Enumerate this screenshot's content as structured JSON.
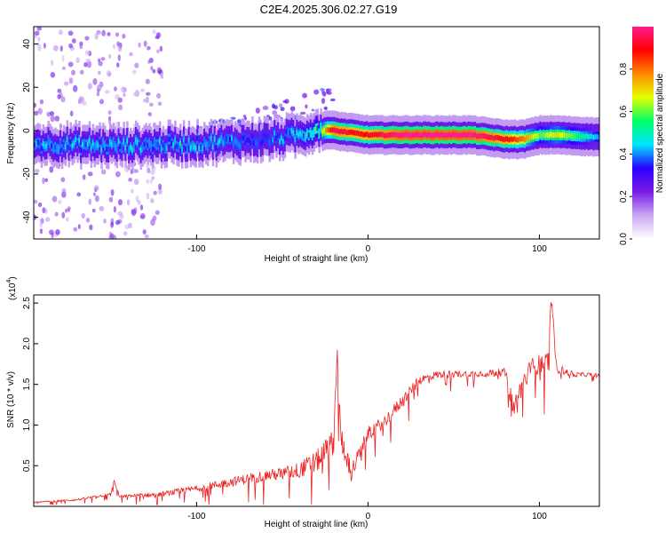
{
  "figure_title": "C2E4.2025.306.02.27.G19",
  "chart_data": [
    {
      "type": "heatmap",
      "title": "C2E4.2025.306.02.27.G19",
      "xlabel": "Height of straight line (km)",
      "ylabel": "Frequency (Hz)",
      "xlim": [
        -195,
        135
      ],
      "ylim": [
        -50,
        48
      ],
      "xticks": [
        -100,
        0,
        100
      ],
      "xtick_labels": [
        "-100",
        "0",
        "100"
      ],
      "yticks": [
        40,
        20,
        0,
        -20,
        -40
      ],
      "ytick_labels": [
        "40",
        "20",
        "0",
        "-20",
        "-40"
      ],
      "colorbar": {
        "label": "Normalized spectral amplitude",
        "range": [
          0,
          1
        ],
        "ticks": [
          0.0,
          0.2,
          0.4,
          0.6,
          0.8
        ],
        "tick_labels": [
          "0.0",
          "0.2",
          "0.4",
          "0.6",
          "0.8"
        ],
        "colors": [
          "#ffffff",
          "#c9a6f2",
          "#7a1ce6",
          "#2a00ff",
          "#00e5ff",
          "#00ff66",
          "#e6ff00",
          "#ff8800",
          "#ff0000",
          "#ff1a8c"
        ]
      },
      "ridge": {
        "description_points_x": [
          -190,
          -150,
          -100,
          -60,
          -40,
          -30,
          -20,
          -10,
          0,
          20,
          60,
          80,
          90,
          100,
          110,
          135
        ],
        "description_points_freq": [
          -6,
          -7,
          -6,
          -4,
          -2,
          1,
          0,
          -1,
          -2,
          -2,
          -2,
          -4,
          -4,
          -2,
          -2,
          -3
        ],
        "peak_amplitude": [
          0.5,
          0.5,
          0.5,
          0.45,
          0.5,
          0.6,
          0.95,
          0.9,
          0.9,
          1.0,
          1.0,
          0.9,
          0.8,
          0.6,
          0.7,
          0.4
        ]
      }
    },
    {
      "type": "line",
      "xlabel": "Height of straight line (km)",
      "ylabel": "SNR (10 * v/v)",
      "y_multiplier_label": "(x10",
      "y_multiplier_exp": "4",
      "y_multiplier_close": ")",
      "xlim": [
        -195,
        135
      ],
      "ylim": [
        0,
        2.6
      ],
      "xticks": [
        -100,
        0,
        100
      ],
      "xtick_labels": [
        "-100",
        "0",
        "100"
      ],
      "yticks": [
        0.5,
        1.0,
        1.5,
        2.0,
        2.5
      ],
      "ytick_labels": [
        "0.5",
        "1.0",
        "1.5",
        "2.0",
        "2.5"
      ],
      "line_color": "#ee2222",
      "series": [
        {
          "name": "SNR",
          "x": [
            -195,
            -170,
            -150,
            -148,
            -145,
            -120,
            -100,
            -80,
            -60,
            -50,
            -40,
            -30,
            -20,
            -18,
            -16,
            -12,
            -10,
            0,
            10,
            20,
            30,
            40,
            60,
            80,
            85,
            90,
            95,
            100,
            105,
            107,
            110,
            120,
            135
          ],
          "values": [
            0.05,
            0.08,
            0.15,
            0.32,
            0.12,
            0.15,
            0.22,
            0.3,
            0.38,
            0.4,
            0.45,
            0.55,
            0.8,
            1.95,
            0.85,
            0.6,
            0.4,
            0.9,
            1.05,
            1.3,
            1.55,
            1.62,
            1.63,
            1.65,
            1.2,
            1.5,
            1.7,
            1.75,
            1.8,
            2.55,
            1.7,
            1.62,
            1.62
          ],
          "noise_amplitude": [
            0.02,
            0.03,
            0.04,
            0.05,
            0.04,
            0.08,
            0.1,
            0.14,
            0.18,
            0.2,
            0.25,
            0.35,
            0.4,
            0.3,
            0.45,
            0.35,
            0.3,
            0.2,
            0.2,
            0.2,
            0.15,
            0.12,
            0.1,
            0.12,
            0.35,
            0.3,
            0.3,
            0.3,
            0.3,
            0.2,
            0.15,
            0.08,
            0.05
          ]
        }
      ]
    }
  ]
}
